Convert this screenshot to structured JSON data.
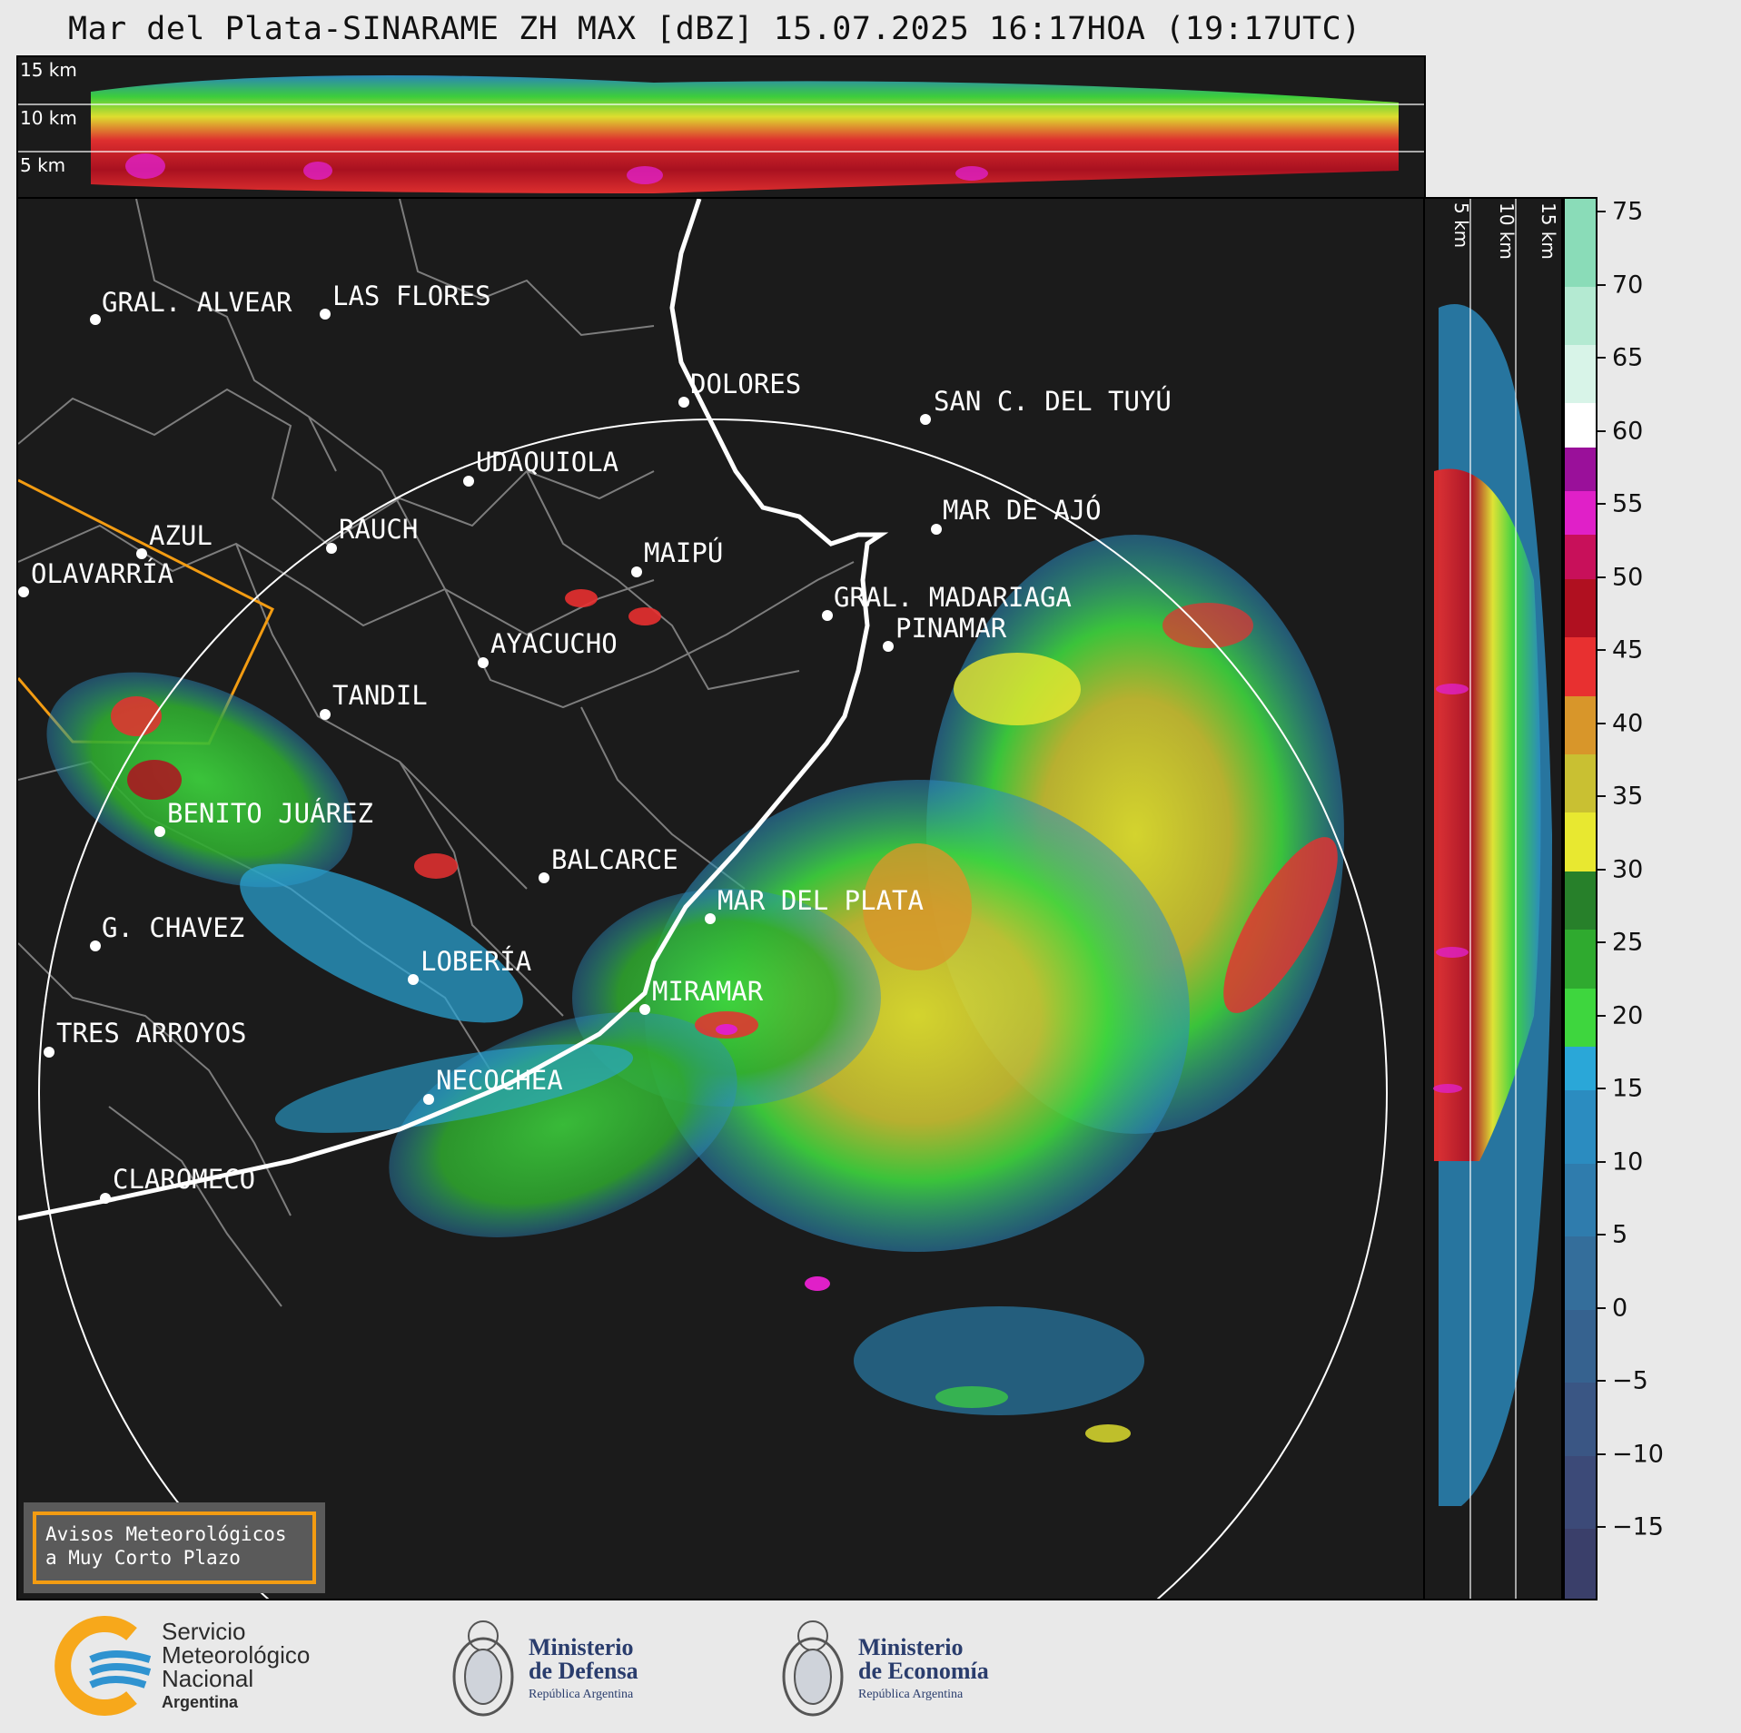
{
  "title": "Mar del Plata-SINARAME ZH MAX [dBZ] 15.07.2025 16:17HOA (19:17UTC)",
  "top_panel": {
    "alt_labels": [
      "15 km",
      "10 km",
      "5 km"
    ]
  },
  "right_panel": {
    "alt_labels": [
      "5 km",
      "10 km",
      "15 km"
    ]
  },
  "cities": [
    {
      "name": "GRAL. ALVEAR"
    },
    {
      "name": "LAS FLORES"
    },
    {
      "name": "DOLORES"
    },
    {
      "name": "SAN C. DEL TUYÚ"
    },
    {
      "name": "UDAQUIOLA"
    },
    {
      "name": "RAUCH"
    },
    {
      "name": "MAR DE AJÓ"
    },
    {
      "name": "AZUL"
    },
    {
      "name": "MAIPÚ"
    },
    {
      "name": "OLAVARRÍA"
    },
    {
      "name": "GRAL. MADARIAGA"
    },
    {
      "name": "PINAMAR"
    },
    {
      "name": "AYACUCHO"
    },
    {
      "name": "TANDIL"
    },
    {
      "name": "BENITO JUÁREZ"
    },
    {
      "name": "BALCARCE"
    },
    {
      "name": "MAR DEL PLATA"
    },
    {
      "name": "G. CHAVEZ"
    },
    {
      "name": "LOBERÍA"
    },
    {
      "name": "MIRAMAR"
    },
    {
      "name": "TRES ARROYOS"
    },
    {
      "name": "NECOCHEA"
    },
    {
      "name": "CLAROMECO"
    }
  ],
  "colorbar": {
    "ticks": [
      "75",
      "70",
      "65",
      "60",
      "55",
      "50",
      "45",
      "40",
      "35",
      "30",
      "25",
      "20",
      "15",
      "10",
      "5",
      "0",
      "−5",
      "−10",
      "−15"
    ],
    "stops": [
      {
        "from": -20,
        "color": "#3a3f6a"
      },
      {
        "from": -15,
        "color": "#3c4a78"
      },
      {
        "from": -10,
        "color": "#3a5684"
      },
      {
        "from": -5,
        "color": "#36628f"
      },
      {
        "from": 0,
        "color": "#346e9b"
      },
      {
        "from": 5,
        "color": "#2f7cad"
      },
      {
        "from": 10,
        "color": "#2b8cc0"
      },
      {
        "from": 15,
        "color": "#2aa7d8"
      },
      {
        "from": 18,
        "color": "#3ed63e"
      },
      {
        "from": 22,
        "color": "#2faa2f"
      },
      {
        "from": 26,
        "color": "#27802a"
      },
      {
        "from": 30,
        "color": "#e8e830"
      },
      {
        "from": 34,
        "color": "#c9c032"
      },
      {
        "from": 38,
        "color": "#d8962a"
      },
      {
        "from": 42,
        "color": "#e83030"
      },
      {
        "from": 46,
        "color": "#b01020"
      },
      {
        "from": 50,
        "color": "#c8105a"
      },
      {
        "from": 53,
        "color": "#e020c8"
      },
      {
        "from": 56,
        "color": "#9a109a"
      },
      {
        "from": 59,
        "color": "#ffffff"
      },
      {
        "from": 62,
        "color": "#d8f4e8"
      },
      {
        "from": 66,
        "color": "#b4ead2"
      },
      {
        "from": 70,
        "color": "#8adcb8"
      }
    ]
  },
  "legend": {
    "line1": "Avisos Meteorológicos",
    "line2": "a Muy Corto Plazo"
  },
  "logos": {
    "smn": {
      "line1": "Servicio",
      "line2": "Meteorológico",
      "line3": "Nacional",
      "line4": "Argentina"
    },
    "defensa": {
      "line1": "Ministerio",
      "line2": "de Defensa",
      "line3": "República Argentina"
    },
    "economia": {
      "line1": "Ministerio",
      "line2": "de Economía",
      "line3": "República Argentina"
    }
  },
  "colors": {
    "background": "#e9e9e9",
    "panel": "#1b1b1b",
    "warning": "#f39c12",
    "coast": "#ffffff"
  }
}
